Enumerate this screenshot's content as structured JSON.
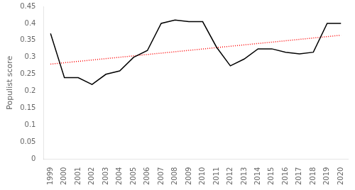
{
  "chart_data": {
    "type": "line",
    "y_label": "Populist score",
    "series": [
      {
        "x": [
          1999,
          2000,
          2001,
          2002,
          2003,
          2004,
          2005,
          2006,
          2007,
          2008,
          2009,
          2010,
          2011,
          2012,
          2013,
          2014,
          2015,
          2016,
          2017,
          2018,
          2019,
          2020
        ],
        "values": [
          0.37,
          0.24,
          0.24,
          0.22,
          0.25,
          0.26,
          0.3,
          0.32,
          0.4,
          0.41,
          0.405,
          0.405,
          0.33,
          0.275,
          0.295,
          0.325,
          0.325,
          0.315,
          0.31,
          0.315,
          0.4,
          0.4
        ],
        "color": "#000000",
        "line_style": "solid"
      },
      {
        "x": [
          1999,
          2020
        ],
        "values": [
          0.28,
          0.365
        ],
        "color": "#ff0000",
        "line_style": "dotted"
      }
    ],
    "marker": "none",
    "xlim": [
      1998.5,
      2020.5
    ],
    "xticks": [
      1999,
      2000,
      2001,
      2002,
      2003,
      2004,
      2005,
      2006,
      2007,
      2008,
      2009,
      2010,
      2011,
      2012,
      2013,
      2014,
      2015,
      2016,
      2017,
      2018,
      2019,
      2020
    ],
    "ylim": [
      0,
      0.45
    ],
    "yticks": [
      0,
      0.05,
      0.1,
      0.15,
      0.2,
      0.25,
      0.3,
      0.35,
      0.4,
      0.45
    ],
    "grid": false
  }
}
